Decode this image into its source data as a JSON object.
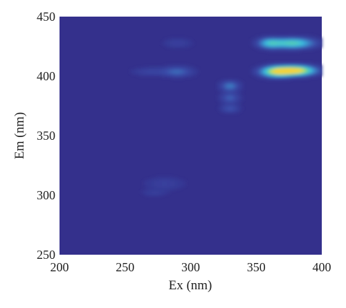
{
  "chart_data": {
    "type": "heatmap",
    "title": "",
    "xlabel": "Ex (nm)",
    "ylabel": "Em (nm)",
    "xlim": [
      200,
      400
    ],
    "ylim": [
      250,
      450
    ],
    "x_ticks": [
      "200",
      "250",
      "300",
      "350",
      "400"
    ],
    "y_ticks": [
      "250",
      "300",
      "350",
      "400",
      "450"
    ],
    "x_tick_values": [
      200,
      250,
      300,
      350,
      400
    ],
    "y_tick_values": [
      250,
      300,
      350,
      400,
      450
    ],
    "grid": false,
    "legend": "none",
    "colormap": [
      "#34308c",
      "#3a4ba8",
      "#3a86c8",
      "#3cc0e0",
      "#5fd19e",
      "#c8e05a",
      "#f5d23a"
    ],
    "background_color": "#34308c",
    "peaks": [
      {
        "ex": 380,
        "em": 405,
        "intensity": 1.0,
        "ex_width": 10,
        "em_width": 2.8
      },
      {
        "ex": 365,
        "em": 404,
        "intensity": 0.75,
        "ex_width": 8,
        "em_width": 3.0
      },
      {
        "ex": 378,
        "em": 428,
        "intensity": 0.62,
        "ex_width": 11,
        "em_width": 3.0
      },
      {
        "ex": 360,
        "em": 428,
        "intensity": 0.42,
        "ex_width": 6,
        "em_width": 3.0
      },
      {
        "ex": 330,
        "em": 392,
        "intensity": 0.3,
        "ex_width": 5,
        "em_width": 3.0
      },
      {
        "ex": 330,
        "em": 382,
        "intensity": 0.22,
        "ex_width": 5,
        "em_width": 3.0
      },
      {
        "ex": 330,
        "em": 373,
        "intensity": 0.18,
        "ex_width": 5,
        "em_width": 2.5
      },
      {
        "ex": 290,
        "em": 404,
        "intensity": 0.25,
        "ex_width": 8,
        "em_width": 3.0
      },
      {
        "ex": 268,
        "em": 404,
        "intensity": 0.12,
        "ex_width": 9,
        "em_width": 2.5
      },
      {
        "ex": 290,
        "em": 428,
        "intensity": 0.1,
        "ex_width": 8,
        "em_width": 3.0
      },
      {
        "ex": 280,
        "em": 310,
        "intensity": 0.1,
        "ex_width": 11,
        "em_width": 4.0
      },
      {
        "ex": 272,
        "em": 302,
        "intensity": 0.08,
        "ex_width": 7,
        "em_width": 2.0
      }
    ]
  }
}
